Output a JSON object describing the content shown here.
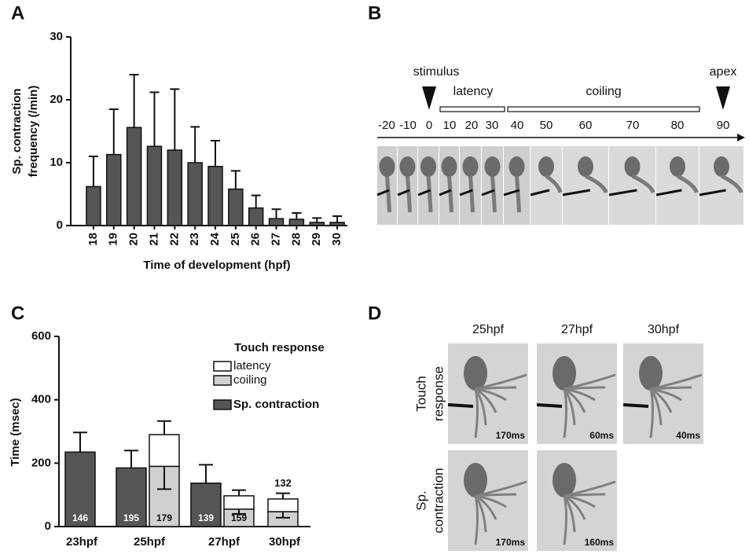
{
  "panel_letters": [
    "A",
    "B",
    "C",
    "D"
  ],
  "chart_data": [
    {
      "type": "bar",
      "ylabel": [
        "Sp. contraction",
        "frequency (/min)"
      ],
      "xlabel": "Time of development (hpf)",
      "categories": [
        "18",
        "19",
        "20",
        "21",
        "22",
        "23",
        "24",
        "25",
        "26",
        "27",
        "28",
        "29",
        "30"
      ],
      "values": [
        6.2,
        11.3,
        15.6,
        12.6,
        12.0,
        10.0,
        9.4,
        5.8,
        2.8,
        1.1,
        1.0,
        0.5,
        0.5
      ],
      "errors": [
        4.8,
        7.2,
        8.4,
        8.6,
        9.7,
        5.7,
        4.1,
        2.9,
        2.0,
        1.5,
        1.0,
        0.7,
        1.0
      ],
      "color": "#555555",
      "ylim": [
        0,
        30
      ],
      "yticks": [
        0,
        10,
        20,
        30
      ]
    },
    {
      "type": "grouped_stacked_bar",
      "ylabel": "Time (msec)",
      "categories": [
        "23hpf",
        "25hpf",
        "27hpf",
        "30hpf"
      ],
      "legend_title": "Touch response",
      "series": [
        {
          "name": "Sp. contraction",
          "color": "#555555",
          "values": [
            235,
            185,
            137,
            null
          ],
          "errors": [
            62,
            55,
            58,
            null
          ],
          "n": [
            146,
            195,
            139,
            null
          ]
        },
        {
          "name": "coiling",
          "color": "#d0d0d0",
          "stack": "touch",
          "values": [
            null,
            190,
            55,
            47
          ],
          "errors": [
            null,
            72,
            15,
            19
          ],
          "n": [
            null,
            179,
            159,
            132
          ]
        },
        {
          "name": "latency",
          "color": "#ffffff",
          "stack": "touch",
          "values": [
            null,
            100,
            42,
            40
          ],
          "errors": [
            null,
            43,
            18,
            18
          ]
        }
      ],
      "ylim": [
        0,
        600
      ],
      "yticks": [
        0,
        200,
        400,
        600
      ]
    }
  ],
  "panel_b": {
    "labels": {
      "stimulus": "stimulus",
      "latency": "latency",
      "coiling": "coiling",
      "apex": "apex"
    },
    "timeline": [
      "-20",
      "-10",
      "0",
      "10",
      "20",
      "30",
      "40",
      "50",
      "60",
      "70",
      "80",
      "90"
    ]
  },
  "panel_d": {
    "columns": [
      "25hpf",
      "27hpf",
      "30hpf"
    ],
    "rows": [
      [
        "Touch",
        "response"
      ],
      [
        "Sp.",
        "contraction"
      ]
    ],
    "times": [
      [
        "170ms",
        "60ms",
        "40ms"
      ],
      [
        "170ms",
        "160ms"
      ]
    ]
  }
}
